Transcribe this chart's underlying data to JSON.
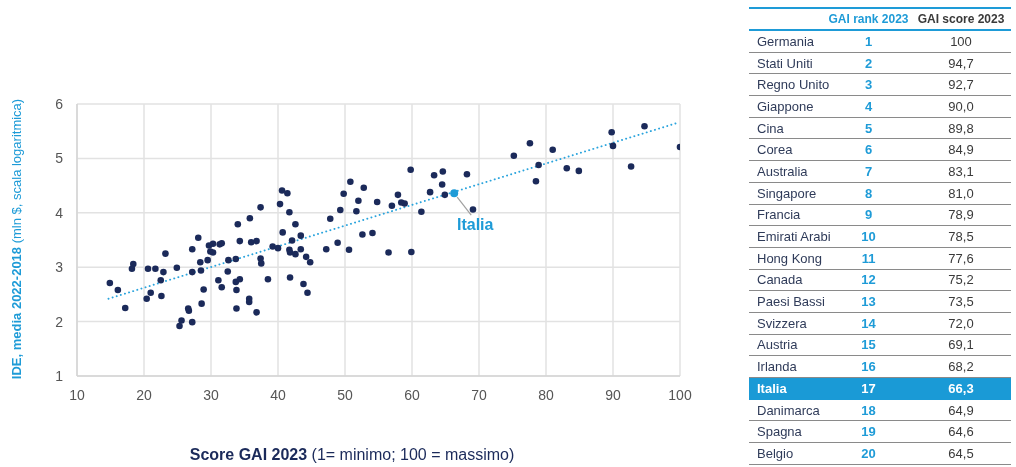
{
  "chart_data": [
    {
      "type": "scatter",
      "xlabel": "Score GAI 2023 (1= minimo; 100 = massimo)",
      "ylabel": "IDE, media 2022-2018 (mln $, scala logaritmica)",
      "xlim": [
        10,
        100
      ],
      "xticks": [
        10,
        20,
        30,
        40,
        50,
        60,
        70,
        80,
        90,
        100
      ],
      "ylim": [
        1,
        6
      ],
      "yticks": [
        1,
        2,
        3,
        4,
        5,
        6
      ],
      "grid": true,
      "marker": "circle",
      "series": [
        {
          "color": "#1b2a5a",
          "x": [
            14.9,
            16.1,
            17.2,
            18.4,
            18.2,
            20.6,
            21.7,
            23.2,
            22.9,
            22.5,
            21.0,
            20.4,
            22.6,
            24.9,
            27.2,
            28.1,
            27.2,
            28.4,
            28.5,
            28.9,
            28.6,
            26.6,
            26.7,
            25.6,
            25.3,
            27.2,
            29.5,
            29.7,
            30.3,
            29.9,
            30.3,
            31.3,
            31.6,
            31.1,
            31.6,
            32.6,
            33.7,
            32.5,
            33.7,
            34.3,
            33.8,
            35.7,
            35.7,
            33.8,
            36.8,
            34.0,
            35.8,
            34.3,
            36.0,
            36.8,
            37.4,
            37.4,
            37.5,
            38.5,
            39.2,
            40.0,
            40.6,
            41.4,
            40.3,
            41.7,
            40.7,
            42.6,
            42.1,
            43.4,
            41.7,
            41.8,
            42.6,
            43.4,
            44.2,
            44.8,
            41.8,
            43.8,
            44.4,
            47.2,
            47.8,
            48.9,
            50.6,
            49.3,
            49.8,
            50.8,
            52.8,
            52.0,
            51.7,
            52.6,
            54.1,
            54.8,
            56.5,
            57.0,
            57.9,
            58.4,
            58.9,
            61.4,
            59.9,
            62.7,
            64.5,
            59.8,
            63.3,
            64.6,
            64.9,
            68.2,
            69.1,
            75.2,
            77.6,
            78.9,
            78.5,
            81.0,
            83.1,
            84.9,
            89.8,
            90.0,
            92.7,
            94.7,
            100
          ],
          "values": [
            2.71,
            2.58,
            2.25,
            3.06,
            2.97,
            2.97,
            2.97,
            3.25,
            2.91,
            2.76,
            2.53,
            2.42,
            2.47,
            2.99,
            3.33,
            3.54,
            2.91,
            3.09,
            2.94,
            2.59,
            2.33,
            2.24,
            2.2,
            2.02,
            1.92,
            1.99,
            3.13,
            3.4,
            3.43,
            3.29,
            3.27,
            3.42,
            3.44,
            2.76,
            2.63,
            3.13,
            3.15,
            2.92,
            2.73,
            2.78,
            2.58,
            2.42,
            2.36,
            2.24,
            2.17,
            3.79,
            3.9,
            3.48,
            3.46,
            3.48,
            4.1,
            3.16,
            3.07,
            2.78,
            3.38,
            3.35,
            4.41,
            4.36,
            4.16,
            4.01,
            3.64,
            3.79,
            3.49,
            3.58,
            3.32,
            3.27,
            3.24,
            3.33,
            3.19,
            3.09,
            2.81,
            2.69,
            2.53,
            3.33,
            3.89,
            3.45,
            3.32,
            4.05,
            4.35,
            4.57,
            4.46,
            4.22,
            4.03,
            3.6,
            3.63,
            4.2,
            3.27,
            4.13,
            4.33,
            4.19,
            4.17,
            4.02,
            3.28,
            4.38,
            4.52,
            4.79,
            4.69,
            4.76,
            4.33,
            4.71,
            4.06,
            5.05,
            5.28,
            4.88,
            4.58,
            5.16,
            4.82,
            4.77,
            5.48,
            5.23,
            4.85,
            5.59,
            5.21
          ]
        },
        {
          "name": "Italia",
          "color": "#1e9bd7",
          "x": [
            66.3
          ],
          "values": [
            4.36
          ]
        },
        {
          "type": "line",
          "color": "#2aa4dd",
          "line_style": "dotted",
          "marker": "none",
          "x": [
            14.7,
            99.8
          ],
          "values": [
            2.42,
            5.66
          ]
        }
      ]
    },
    {
      "type": "other",
      "categories": [
        "Germania",
        "Stati Uniti",
        "Regno Unito",
        "Giappone",
        "Cina",
        "Corea",
        "Australia",
        "Singapore",
        "Francia",
        "Emirati Arabi",
        "Hong Kong",
        "Canada",
        "Paesi Bassi",
        "Svizzera",
        "Austria",
        "Irlanda",
        "Italia",
        "Danimarca",
        "Spagna",
        "Belgio"
      ],
      "colors": [
        null,
        null,
        null,
        null,
        null,
        null,
        null,
        null,
        null,
        null,
        null,
        null,
        null,
        null,
        null,
        null,
        "#1a9ad6",
        null,
        null,
        null
      ],
      "series": [
        {
          "name": "GAI rank 2023",
          "color": "#1e9bd7",
          "values": [
            1,
            2,
            3,
            4,
            5,
            6,
            7,
            8,
            9,
            10,
            11,
            12,
            13,
            14,
            15,
            16,
            17,
            18,
            19,
            20
          ],
          "value_labels": [
            "1",
            "2",
            "3",
            "4",
            "5",
            "6",
            "7",
            "8",
            "9",
            "10",
            "11",
            "12",
            "13",
            "14",
            "15",
            "16",
            "17",
            "18",
            "19",
            "20"
          ]
        },
        {
          "name": "GAI score 2023",
          "color": "#3a3a3a",
          "values": [
            100,
            94.7,
            92.7,
            90.0,
            89.8,
            84.9,
            83.1,
            81.0,
            78.9,
            78.5,
            77.6,
            75.2,
            73.5,
            72.0,
            69.1,
            68.2,
            66.3,
            64.9,
            64.6,
            64.5
          ],
          "value_labels": [
            "100",
            "94,7",
            "92,7",
            "90,0",
            "89,8",
            "84,9",
            "83,1",
            "81,0",
            "78,9",
            "78,5",
            "77,6",
            "75,2",
            "73,5",
            "72,0",
            "69,1",
            "68,2",
            "66,3",
            "64,9",
            "64,6",
            "64,5"
          ]
        }
      ]
    }
  ]
}
